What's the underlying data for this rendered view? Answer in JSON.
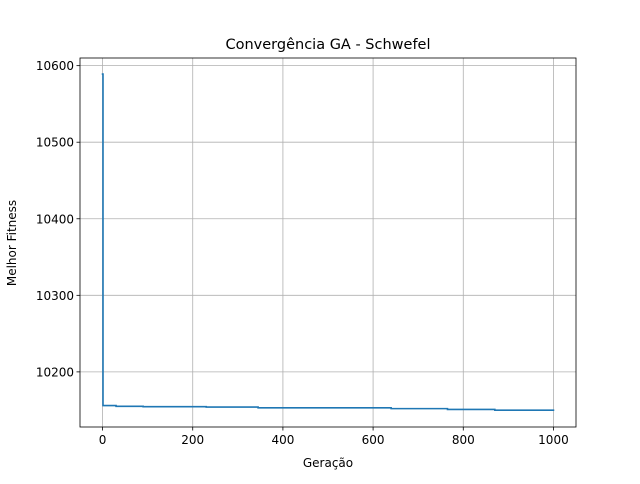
{
  "chart_data": {
    "type": "line",
    "title": "Convergência GA - Schwefel",
    "xlabel": "Geração",
    "ylabel": "Melhor Fitness",
    "xlim": [
      -50,
      1050
    ],
    "ylim": [
      10128,
      10610
    ],
    "x_ticks": [
      0,
      200,
      400,
      600,
      800,
      1000
    ],
    "y_ticks": [
      10200,
      10300,
      10400,
      10500,
      10600
    ],
    "grid": true,
    "line_color": "#1f77b4",
    "series": [
      {
        "x": [
          0,
          1,
          1,
          30,
          30,
          90,
          90,
          230,
          230,
          345,
          345,
          640,
          640,
          765,
          765,
          870,
          870,
          1000
        ],
        "y": [
          10589,
          10589,
          10156,
          10156,
          10155,
          10155,
          10154.5,
          10154.5,
          10154,
          10154,
          10153,
          10153,
          10152,
          10152,
          10151,
          10151,
          10150,
          10150
        ]
      }
    ]
  }
}
